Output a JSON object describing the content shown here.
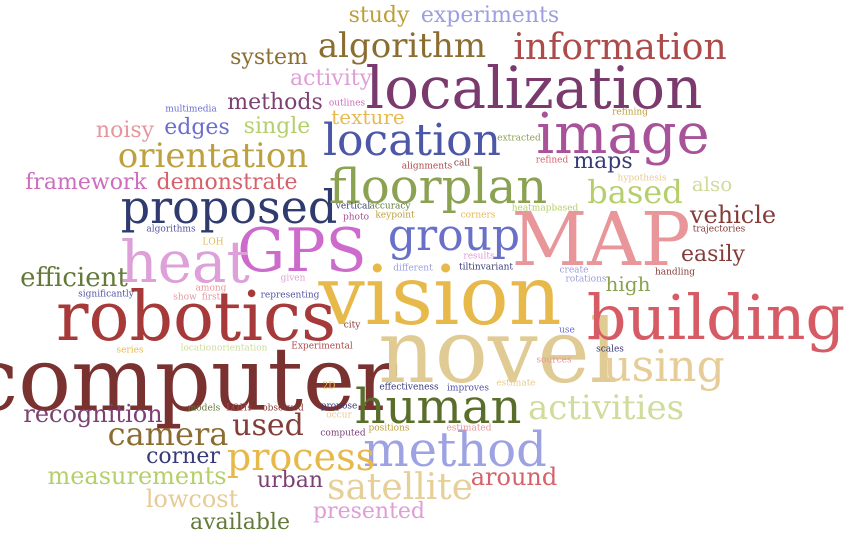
{
  "word_cloud": {
    "words": [
      {
        "text": "computer",
        "color": "#7a3230"
      },
      {
        "text": "novel",
        "color": "#e0cb95"
      },
      {
        "text": "vision",
        "color": "#e7b94b"
      },
      {
        "text": "MAP",
        "color": "#e8969a"
      },
      {
        "text": "building",
        "color": "#d65b64"
      },
      {
        "text": "robotics",
        "color": "#a63a3a"
      },
      {
        "text": "localization",
        "color": "#7a3a6e"
      },
      {
        "text": "GPS",
        "color": "#cc6bcc"
      },
      {
        "text": "heat",
        "color": "#dda0d8"
      },
      {
        "text": "image",
        "color": "#a8529a"
      },
      {
        "text": "proposed",
        "color": "#2f3b6e"
      },
      {
        "text": "floorplan",
        "color": "#8ca253"
      },
      {
        "text": "location",
        "color": "#4c57a8"
      },
      {
        "text": "method",
        "color": "#9da2e2"
      },
      {
        "text": "human",
        "color": "#5a6e2c"
      },
      {
        "text": "group",
        "color": "#6870c8"
      },
      {
        "text": "using",
        "color": "#e6cd98"
      },
      {
        "text": "information",
        "color": "#ad4a4a"
      },
      {
        "text": "activities",
        "color": "#cfdc9c"
      },
      {
        "text": "process",
        "color": "#e7b94b"
      },
      {
        "text": "satellite",
        "color": "#e7cf98"
      },
      {
        "text": "algorithm",
        "color": "#8c6d31"
      },
      {
        "text": "orientation",
        "color": "#bda040"
      },
      {
        "text": "camera",
        "color": "#8c6d31"
      },
      {
        "text": "used",
        "color": "#843c39"
      },
      {
        "text": "based",
        "color": "#b5cf6b"
      },
      {
        "text": "recognition",
        "color": "#7b4173"
      },
      {
        "text": "efficient",
        "color": "#637939"
      },
      {
        "text": "around",
        "color": "#d6616b"
      },
      {
        "text": "vehicle",
        "color": "#843c39"
      },
      {
        "text": "measurements",
        "color": "#b5cf6b"
      },
      {
        "text": "presented",
        "color": "#de9ed6"
      },
      {
        "text": "available",
        "color": "#637939"
      },
      {
        "text": "lowcost",
        "color": "#e7cb94"
      },
      {
        "text": "corner",
        "color": "#393b79"
      },
      {
        "text": "urban",
        "color": "#7b4173"
      },
      {
        "text": "demonstrate",
        "color": "#d6616b"
      },
      {
        "text": "framework",
        "color": "#ce6dbd"
      },
      {
        "text": "noisy",
        "color": "#e7969c"
      },
      {
        "text": "edges",
        "color": "#6b6ecf"
      },
      {
        "text": "single",
        "color": "#b5cf6b"
      },
      {
        "text": "texture",
        "color": "#e7ba52"
      },
      {
        "text": "methods",
        "color": "#7b4173"
      },
      {
        "text": "activity",
        "color": "#de9ed6"
      },
      {
        "text": "system",
        "color": "#8c6d31"
      },
      {
        "text": "study",
        "color": "#bd9e39"
      },
      {
        "text": "experiments",
        "color": "#9c9ede"
      },
      {
        "text": "maps",
        "color": "#393b79"
      },
      {
        "text": "also",
        "color": "#cedb9c"
      },
      {
        "text": "easily",
        "color": "#843c39"
      },
      {
        "text": "high",
        "color": "#8ca252"
      },
      {
        "text": "multimedia",
        "color": "#6b6ecf"
      },
      {
        "text": "outlines",
        "color": "#ce6dbd"
      },
      {
        "text": "extracted",
        "color": "#8ca252"
      },
      {
        "text": "refining",
        "color": "#bd9e39"
      },
      {
        "text": "alignments",
        "color": "#ad494a"
      },
      {
        "text": "call",
        "color": "#843c39"
      },
      {
        "text": "refined",
        "color": "#d6616b"
      },
      {
        "text": "hypothesis",
        "color": "#e7cb94"
      },
      {
        "text": "vertical",
        "color": "#393b79"
      },
      {
        "text": "accuracy",
        "color": "#637939"
      },
      {
        "text": "keypoint",
        "color": "#bd9e39"
      },
      {
        "text": "photo",
        "color": "#a55194"
      },
      {
        "text": "corners",
        "color": "#e7ba52"
      },
      {
        "text": "heatmapbased",
        "color": "#b5cf6b"
      },
      {
        "text": "trajectories",
        "color": "#843c39"
      },
      {
        "text": "algorithms",
        "color": "#5254a3"
      },
      {
        "text": "LOH",
        "color": "#e7ba52"
      },
      {
        "text": "results",
        "color": "#de9ed6"
      },
      {
        "text": "tiltinvariant",
        "color": "#393b79"
      },
      {
        "text": "different",
        "color": "#9c9ede"
      },
      {
        "text": "given",
        "color": "#de9ed6"
      },
      {
        "text": "create",
        "color": "#9c9ede"
      },
      {
        "text": "rotations",
        "color": "#9c9ede"
      },
      {
        "text": "handling",
        "color": "#843c39"
      },
      {
        "text": "among",
        "color": "#e7969c"
      },
      {
        "text": "significantly",
        "color": "#5254a3"
      },
      {
        "text": "show",
        "color": "#e7969c"
      },
      {
        "text": "first",
        "color": "#e7969c"
      },
      {
        "text": "representing",
        "color": "#5254a3"
      },
      {
        "text": "city",
        "color": "#843c39"
      },
      {
        "text": "use",
        "color": "#6b6ecf"
      },
      {
        "text": "series",
        "color": "#e7ba52"
      },
      {
        "text": "locationorientation",
        "color": "#cedb9c"
      },
      {
        "text": "Experimental",
        "color": "#ad494a"
      },
      {
        "text": "sources",
        "color": "#e7969c"
      },
      {
        "text": "scales",
        "color": "#393b79"
      },
      {
        "text": "2D",
        "color": "#e7ba52"
      },
      {
        "text": "effectiveness",
        "color": "#393b79"
      },
      {
        "text": "improves",
        "color": "#5254a3"
      },
      {
        "text": "estimate",
        "color": "#e7cb94"
      },
      {
        "text": "models",
        "color": "#637939"
      },
      {
        "text": "LOHs",
        "color": "#ad494a"
      },
      {
        "text": "observed",
        "color": "#843c39"
      },
      {
        "text": "propose",
        "color": "#393b79"
      },
      {
        "text": "occur",
        "color": "#e7cb94"
      },
      {
        "text": "positions",
        "color": "#bd9e39"
      },
      {
        "text": "estimated",
        "color": "#e7969c"
      },
      {
        "text": "computed",
        "color": "#7b4173"
      }
    ]
  }
}
